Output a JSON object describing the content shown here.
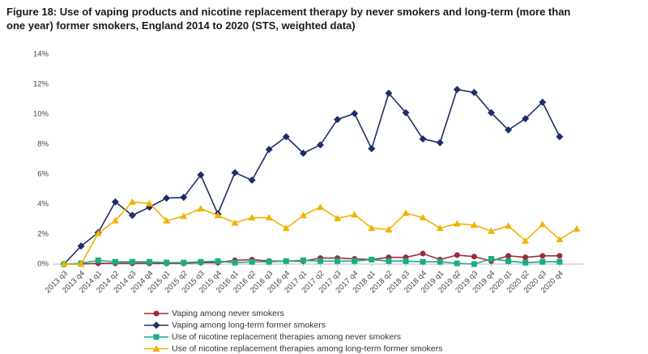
{
  "chart_data": {
    "type": "line",
    "title": "Figure 18: Use of vaping products and nicotine replacement therapy by never smokers and long-term (more than one year) former smokers, England 2014 to 2020 (STS, weighted data)",
    "categories": [
      "2013 q3",
      "2013 q4",
      "2014 q1",
      "2014 q2",
      "2014 q3",
      "2014 q4",
      "2015 q1",
      "2015 q2",
      "2015 q3",
      "2015 q4",
      "2016 q1",
      "2016 q2",
      "2016 q3",
      "2016 q4",
      "2017 q1",
      "2017 q2",
      "2017 q3",
      "2017 q4",
      "2018 q1",
      "2018 q2",
      "2018 q3",
      "2018 q4",
      "2019 q1",
      "2019 q2",
      "2019 q3",
      "2019 q4",
      "2020 q1",
      "2020 q2",
      "2020 q3",
      "2020 q4",
      null
    ],
    "series": [
      {
        "name": "Vaping among never smokers",
        "color": "#9b2d3a",
        "marker": "circle",
        "values": [
          0,
          0,
          0.05,
          0.05,
          0.05,
          0.05,
          0.05,
          0.05,
          0.1,
          0.1,
          0.25,
          0.3,
          0.2,
          0.2,
          0.2,
          0.4,
          0.4,
          0.35,
          0.3,
          0.45,
          0.45,
          0.7,
          0.3,
          0.6,
          0.5,
          0.2,
          0.55,
          0.45,
          0.55,
          0.55,
          null
        ]
      },
      {
        "name": "Vaping among long-term former smokers",
        "color": "#1f2d6b",
        "marker": "diamond",
        "values": [
          0,
          1.2,
          2.1,
          4.15,
          3.25,
          3.8,
          4.4,
          4.45,
          5.95,
          3.35,
          6.1,
          5.6,
          7.65,
          8.5,
          7.4,
          7.95,
          9.65,
          10.05,
          7.7,
          11.4,
          10.1,
          8.35,
          8.1,
          11.65,
          11.45,
          10.1,
          8.95,
          9.7,
          10.8,
          8.5,
          null
        ]
      },
      {
        "name": "Use of nicotine replacement therapies among never smokers",
        "color": "#1aab8a",
        "marker": "square",
        "values": [
          0,
          0.05,
          0.25,
          0.15,
          0.15,
          0.15,
          0.1,
          0.1,
          0.15,
          0.2,
          0.1,
          0.15,
          0.15,
          0.2,
          0.25,
          0.2,
          0.2,
          0.2,
          0.3,
          0.2,
          0.2,
          0.15,
          0.15,
          0.05,
          0,
          0.35,
          0.2,
          0.1,
          0.15,
          0.15,
          null
        ]
      },
      {
        "name": "Use of nicotine replacement therapies among long-term former smokers",
        "color": "#f0b400",
        "marker": "triangle",
        "values": [
          0,
          0,
          2.05,
          2.9,
          4.15,
          4.05,
          2.9,
          3.2,
          3.7,
          3.25,
          2.75,
          3.1,
          3.1,
          2.4,
          3.25,
          3.8,
          3.05,
          3.3,
          2.4,
          2.3,
          3.4,
          3.1,
          2.4,
          2.7,
          2.6,
          2.2,
          2.55,
          1.55,
          2.65,
          1.65,
          2.35
        ]
      }
    ],
    "ylim": [
      0,
      14
    ],
    "yticks": [
      {
        "value": 0,
        "label": "0%"
      },
      {
        "value": 2,
        "label": "2%"
      },
      {
        "value": 4,
        "label": "4%"
      },
      {
        "value": 6,
        "label": "6%"
      },
      {
        "value": 8,
        "label": "8%"
      },
      {
        "value": 10,
        "label": "10%"
      },
      {
        "value": 12,
        "label": "12%"
      },
      {
        "value": 14,
        "label": "14%"
      }
    ],
    "grid": false
  }
}
